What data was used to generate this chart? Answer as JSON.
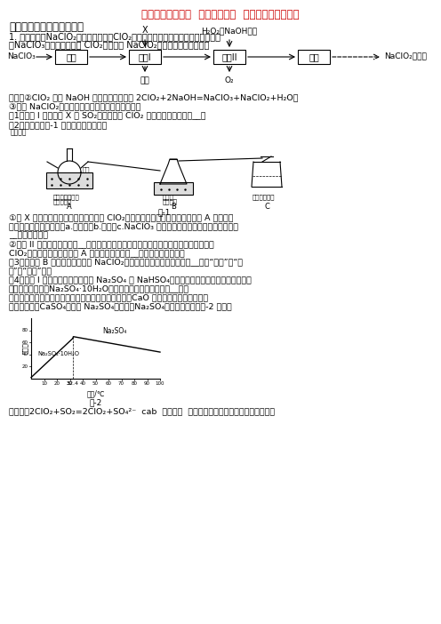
{
  "title": "备战高考化学二轮  氧化还原反应  专项培优附答案解析",
  "title_color": "#CC0000",
  "bg_color": "#FFFFFF",
  "section1": "一、高中化学氧唲还原反应",
  "body1": "1. 亚氯酸钓（NaClO₂）是二氧化氯（ClO₂）泡腾片的主要成分，实验室以氯酸钓",
  "body2": "（NaClO₃）为原料先制得 ClO₂，再制备 NaClO₂粗产品，其流程如图：",
  "known1": "已知：②ClO₂ 可被 NaOH 溶液吸收，反应为 2ClO₂+2NaOH=NaClO₃+NaClO₂+H₂O。",
  "known2": "③无水 NaClO₂性质稳定，有水存在时受热易分解。",
  "q1": "（1）反应 I 中若物质 X 为 SO₂，则该制备 ClO₂ 反应的离子方程式为__。",
  "q2": "（2）实验在如图-1 所示的装置中进行。",
  "q3a": "①若 X 为硫磺与浓硫酸，也可反应生成 ClO₂，该反应较剧烈，若该反应在装置 A 的三颤烧",
  "q3b": "瓶中进行，则三种试剤（a.浓硫酸；b.硫磺；c.NaClO₃ 溶液）添加入三颤烧瓶的顺序依次为",
  "q3c": "__（填字母）。",
  "q4a": "②反应 II 中双氧水的作用是__，保持反应时间、反应物和溶剤的用量不变，实验中提高",
  "q4b": "ClO₂吸收率的操作有：装置 A 中分批加入硫磺、__（写出一种即可）。",
  "q5a": "（3）将装置 B 中溶液蒸发可析出 NaClO₂，蒸发过程中宜控制的条件为__（填“减压”、“常",
  "q5b": "压”或“加压”）。",
  "q6a": "（4）反应 I 所得废液中主要溶质为 Na₂SO₄ 和 NaHSO₄，直接排放会污染环境且浪费资源。",
  "q6b": "为从中获得芒稔（Na₂SO₄·10H₂O），请补充完整实验方案：__。将",
  "q6c": "滤液一步处理后排放（实验中须使用的试剤和设备有：CaO 固体、酒精、冰水和冰水",
  "q6d": "浴）。已知：CaSO₄不溶于 Na₂SO₄水溶液；Na₂SO₄的溶解度曲线如图-2 所示。",
  "answer": "【答案】2ClO₂+SO₂=2ClO₂+SO₄²⁻  cab  作还原剤  水浴加热时控制温度不能过高（或加一"
}
